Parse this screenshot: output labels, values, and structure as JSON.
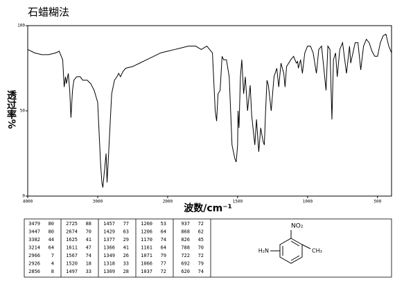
{
  "chart_data": {
    "type": "line",
    "title": "石蜡糊法",
    "ylabel": "透过率%",
    "xlabel": "波数/cm⁻¹",
    "color": "#000000",
    "xlim": [
      4000,
      400
    ],
    "xticks": [
      4000,
      3000,
      2000,
      1500,
      1000,
      500
    ],
    "ylim": [
      0,
      100
    ],
    "yticks": [
      0,
      50,
      100
    ],
    "x": [
      4000,
      3900,
      3800,
      3700,
      3600,
      3550,
      3500,
      3479,
      3460,
      3447,
      3420,
      3400,
      3382,
      3360,
      3340,
      3300,
      3250,
      3214,
      3150,
      3100,
      3050,
      3000,
      2960,
      2940,
      2926,
      2910,
      2880,
      2866,
      2850,
      2800,
      2760,
      2725,
      2700,
      2674,
      2640,
      2600,
      2500,
      2400,
      2300,
      2200,
      2100,
      2000,
      1950,
      1900,
      1850,
      1800,
      1760,
      1720,
      1680,
      1660,
      1650,
      1640,
      1625,
      1611,
      1600,
      1580,
      1560,
      1540,
      1520,
      1510,
      1500,
      1497,
      1490,
      1480,
      1470,
      1457,
      1445,
      1429,
      1410,
      1400,
      1390,
      1377,
      1365,
      1349,
      1335,
      1318,
      1309,
      1300,
      1290,
      1280,
      1260,
      1240,
      1220,
      1206,
      1190,
      1170,
      1161,
      1150,
      1120,
      1100,
      1080,
      1071,
      1066,
      1050,
      1037,
      1020,
      1000,
      980,
      960,
      937,
      920,
      900,
      868,
      855,
      840,
      826,
      815,
      800,
      788,
      770,
      750,
      722,
      700,
      692,
      660,
      640,
      620,
      600,
      580,
      560,
      540,
      520,
      500,
      480,
      460,
      440,
      420,
      400
    ],
    "values": [
      86,
      84,
      83,
      83,
      84,
      85,
      80,
      64,
      70,
      66,
      72,
      62,
      46,
      62,
      68,
      70,
      70,
      68,
      68,
      66,
      62,
      55,
      20,
      8,
      5,
      12,
      25,
      8,
      20,
      60,
      68,
      70,
      72,
      70,
      73,
      75,
      76,
      78,
      80,
      82,
      84,
      85,
      86,
      87,
      88,
      88,
      86,
      88,
      84,
      50,
      44,
      60,
      62,
      82,
      80,
      80,
      70,
      30,
      22,
      20,
      30,
      50,
      40,
      70,
      80,
      60,
      70,
      50,
      65,
      48,
      40,
      30,
      45,
      26,
      40,
      32,
      30,
      50,
      68,
      65,
      50,
      70,
      75,
      64,
      78,
      72,
      64,
      76,
      80,
      82,
      78,
      79,
      75,
      80,
      72,
      84,
      88,
      88,
      84,
      72,
      86,
      88,
      62,
      88,
      86,
      45,
      80,
      84,
      70,
      86,
      90,
      72,
      88,
      78,
      90,
      90,
      74,
      88,
      92,
      90,
      85,
      82,
      82,
      90,
      94,
      95,
      88,
      84
    ]
  },
  "peak_table": [
    [
      [
        "3479",
        "80"
      ],
      [
        "3447",
        "80"
      ],
      [
        "3382",
        "44"
      ],
      [
        "3214",
        "64"
      ],
      [
        "2966",
        "7"
      ],
      [
        "2926",
        "4"
      ],
      [
        "2856",
        "8"
      ]
    ],
    [
      [
        "2725",
        "88"
      ],
      [
        "2674",
        "70"
      ],
      [
        "1625",
        "41"
      ],
      [
        "1611",
        "47"
      ],
      [
        "1567",
        "74"
      ],
      [
        "1520",
        "18"
      ],
      [
        "1497",
        "33"
      ]
    ],
    [
      [
        "1457",
        "77"
      ],
      [
        "1429",
        "63"
      ],
      [
        "1377",
        "29"
      ],
      [
        "1366",
        "41"
      ],
      [
        "1349",
        "26"
      ],
      [
        "1318",
        "33"
      ],
      [
        "1309",
        "28"
      ]
    ],
    [
      [
        "1260",
        "53"
      ],
      [
        "1206",
        "64"
      ],
      [
        "1170",
        "74"
      ],
      [
        "1161",
        "64"
      ],
      [
        "1071",
        "79"
      ],
      [
        "1066",
        "77"
      ],
      [
        "1037",
        "72"
      ]
    ],
    [
      [
        "937",
        "72"
      ],
      [
        "868",
        "62"
      ],
      [
        "826",
        "45"
      ],
      [
        "788",
        "70"
      ],
      [
        "722",
        "72"
      ],
      [
        "692",
        "79"
      ],
      [
        "620",
        "74"
      ]
    ]
  ],
  "structure": {
    "nitro": "NO₂",
    "amine": "H₂N",
    "methyl": "CH₃"
  }
}
